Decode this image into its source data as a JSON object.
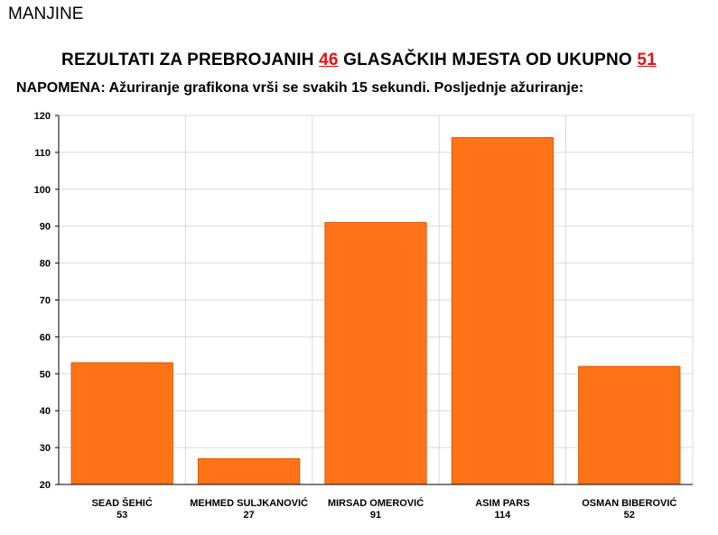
{
  "header": {
    "section": "MANJINE",
    "headline_prefix": "REZULTATI ZA PREBROJANIH",
    "counted": "46",
    "headline_middle": "GLASAČKIH MJESTA OD UKUPNO",
    "total": "51",
    "note": "NAPOMENA: Ažuriranje grafikona vrši se svakih 15 sekundi. Posljednje ažuriranje:"
  },
  "colors": {
    "bar_fill": "#ff7318",
    "bar_stroke": "#d85a0a",
    "accent_red": "#e31212",
    "grid": "#d9d9d9"
  },
  "chart_data": {
    "type": "bar",
    "categories": [
      "SEAD ŠEHIĆ",
      "MEHMED SULJKANOVIĆ",
      "MIRSAD OMEROVIĆ",
      "ASIM PARS",
      "OSMAN BIBEROVIĆ"
    ],
    "values": [
      53,
      27,
      91,
      114,
      52
    ],
    "value_labels": [
      "53",
      "27",
      "91",
      "114",
      "52"
    ],
    "ylim": [
      20,
      120
    ],
    "yticks": [
      20,
      30,
      40,
      50,
      60,
      70,
      80,
      90,
      100,
      110,
      120
    ],
    "ytick_labels": [
      "20",
      "30",
      "40",
      "50",
      "60",
      "70",
      "80",
      "90",
      "100",
      "110",
      "120"
    ],
    "grid": true,
    "legend": "none"
  }
}
